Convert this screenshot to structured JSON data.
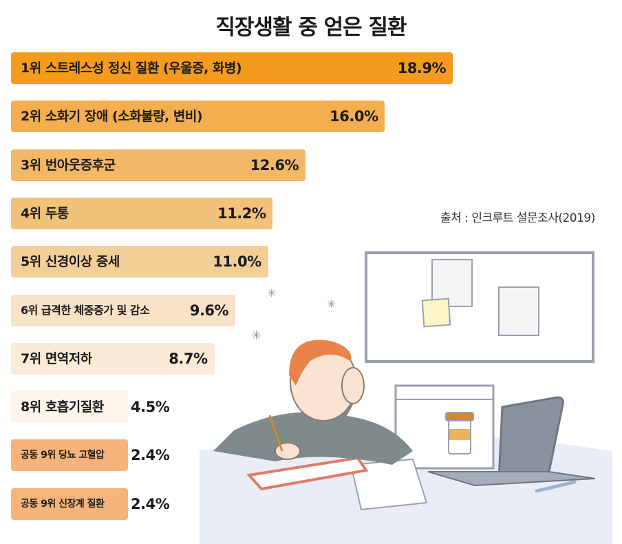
{
  "title": "직장생활 중 얻은 질환",
  "source": "출처 : 인크루트 설문조사(2019)",
  "chart_data": {
    "type": "bar",
    "orientation": "horizontal",
    "title": "직장생활 중 얻은 질환",
    "unit": "%",
    "categories": [
      "1위 스트레스성 정신 질환 (우울증, 화병)",
      "2위 소화기 장애 (소화불량, 변비)",
      "3위 번아웃증후군",
      "4위 두통",
      "5위 신경이상 증세",
      "6위 급격한 체중증가 및 감소",
      "7위 면역저하",
      "8위 호흡기질환",
      "공동 9위 당뇨 고혈압",
      "공동 9위 신장계 질환"
    ],
    "values": [
      18.9,
      16.0,
      12.6,
      11.2,
      11.0,
      9.6,
      8.7,
      4.5,
      2.4,
      2.4
    ],
    "value_labels": [
      "18.9%",
      "16.0%",
      "12.6%",
      "11.2%",
      "11.0%",
      "9.6%",
      "8.7%",
      "4.5%",
      "2.4%",
      "2.4%"
    ],
    "colors": [
      "#f49b1e",
      "#f4ae50",
      "#f2b865",
      "#f2c27a",
      "#f3cf98",
      "#f9e3c7",
      "#fcebd6",
      "#fdf5ea",
      "#f6b47a",
      "#f6b47a"
    ],
    "legend": "none",
    "grid": false
  }
}
